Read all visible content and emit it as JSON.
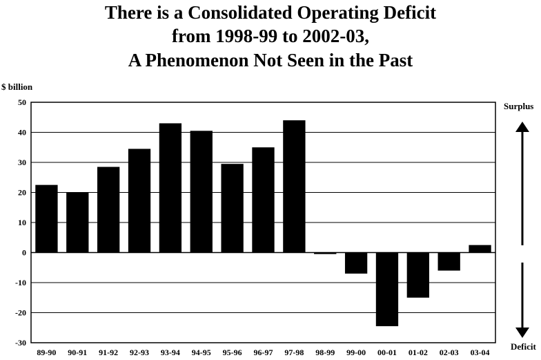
{
  "title_lines": [
    "There is a Consolidated Operating Deficit",
    "from 1998-99 to 2002-03,",
    "A Phenomenon Not Seen in the Past"
  ],
  "side_labels": {
    "top": "Surplus",
    "bottom": "Deficit"
  },
  "chart_data": {
    "type": "bar",
    "title": "There is a Consolidated Operating Deficit from 1998-99 to 2002-03, A Phenomenon Not Seen in the Past",
    "ylabel": "$ billion",
    "xlabel": "",
    "categories": [
      "89-90",
      "90-91",
      "91-92",
      "92-93",
      "93-94",
      "94-95",
      "95-96",
      "96-97",
      "97-98",
      "98-99",
      "99-00",
      "00-01",
      "01-02",
      "02-03",
      "03-04"
    ],
    "values": [
      22.5,
      20,
      28.5,
      34.5,
      43,
      40.5,
      29.5,
      35,
      44,
      -0.5,
      -7,
      -24.5,
      -15,
      -6,
      2.5
    ],
    "ylim": [
      -30,
      50
    ],
    "yticks": [
      50,
      40,
      30,
      20,
      10,
      0,
      -10,
      -20,
      -30
    ],
    "grid": true,
    "bar_color": "#000000"
  }
}
